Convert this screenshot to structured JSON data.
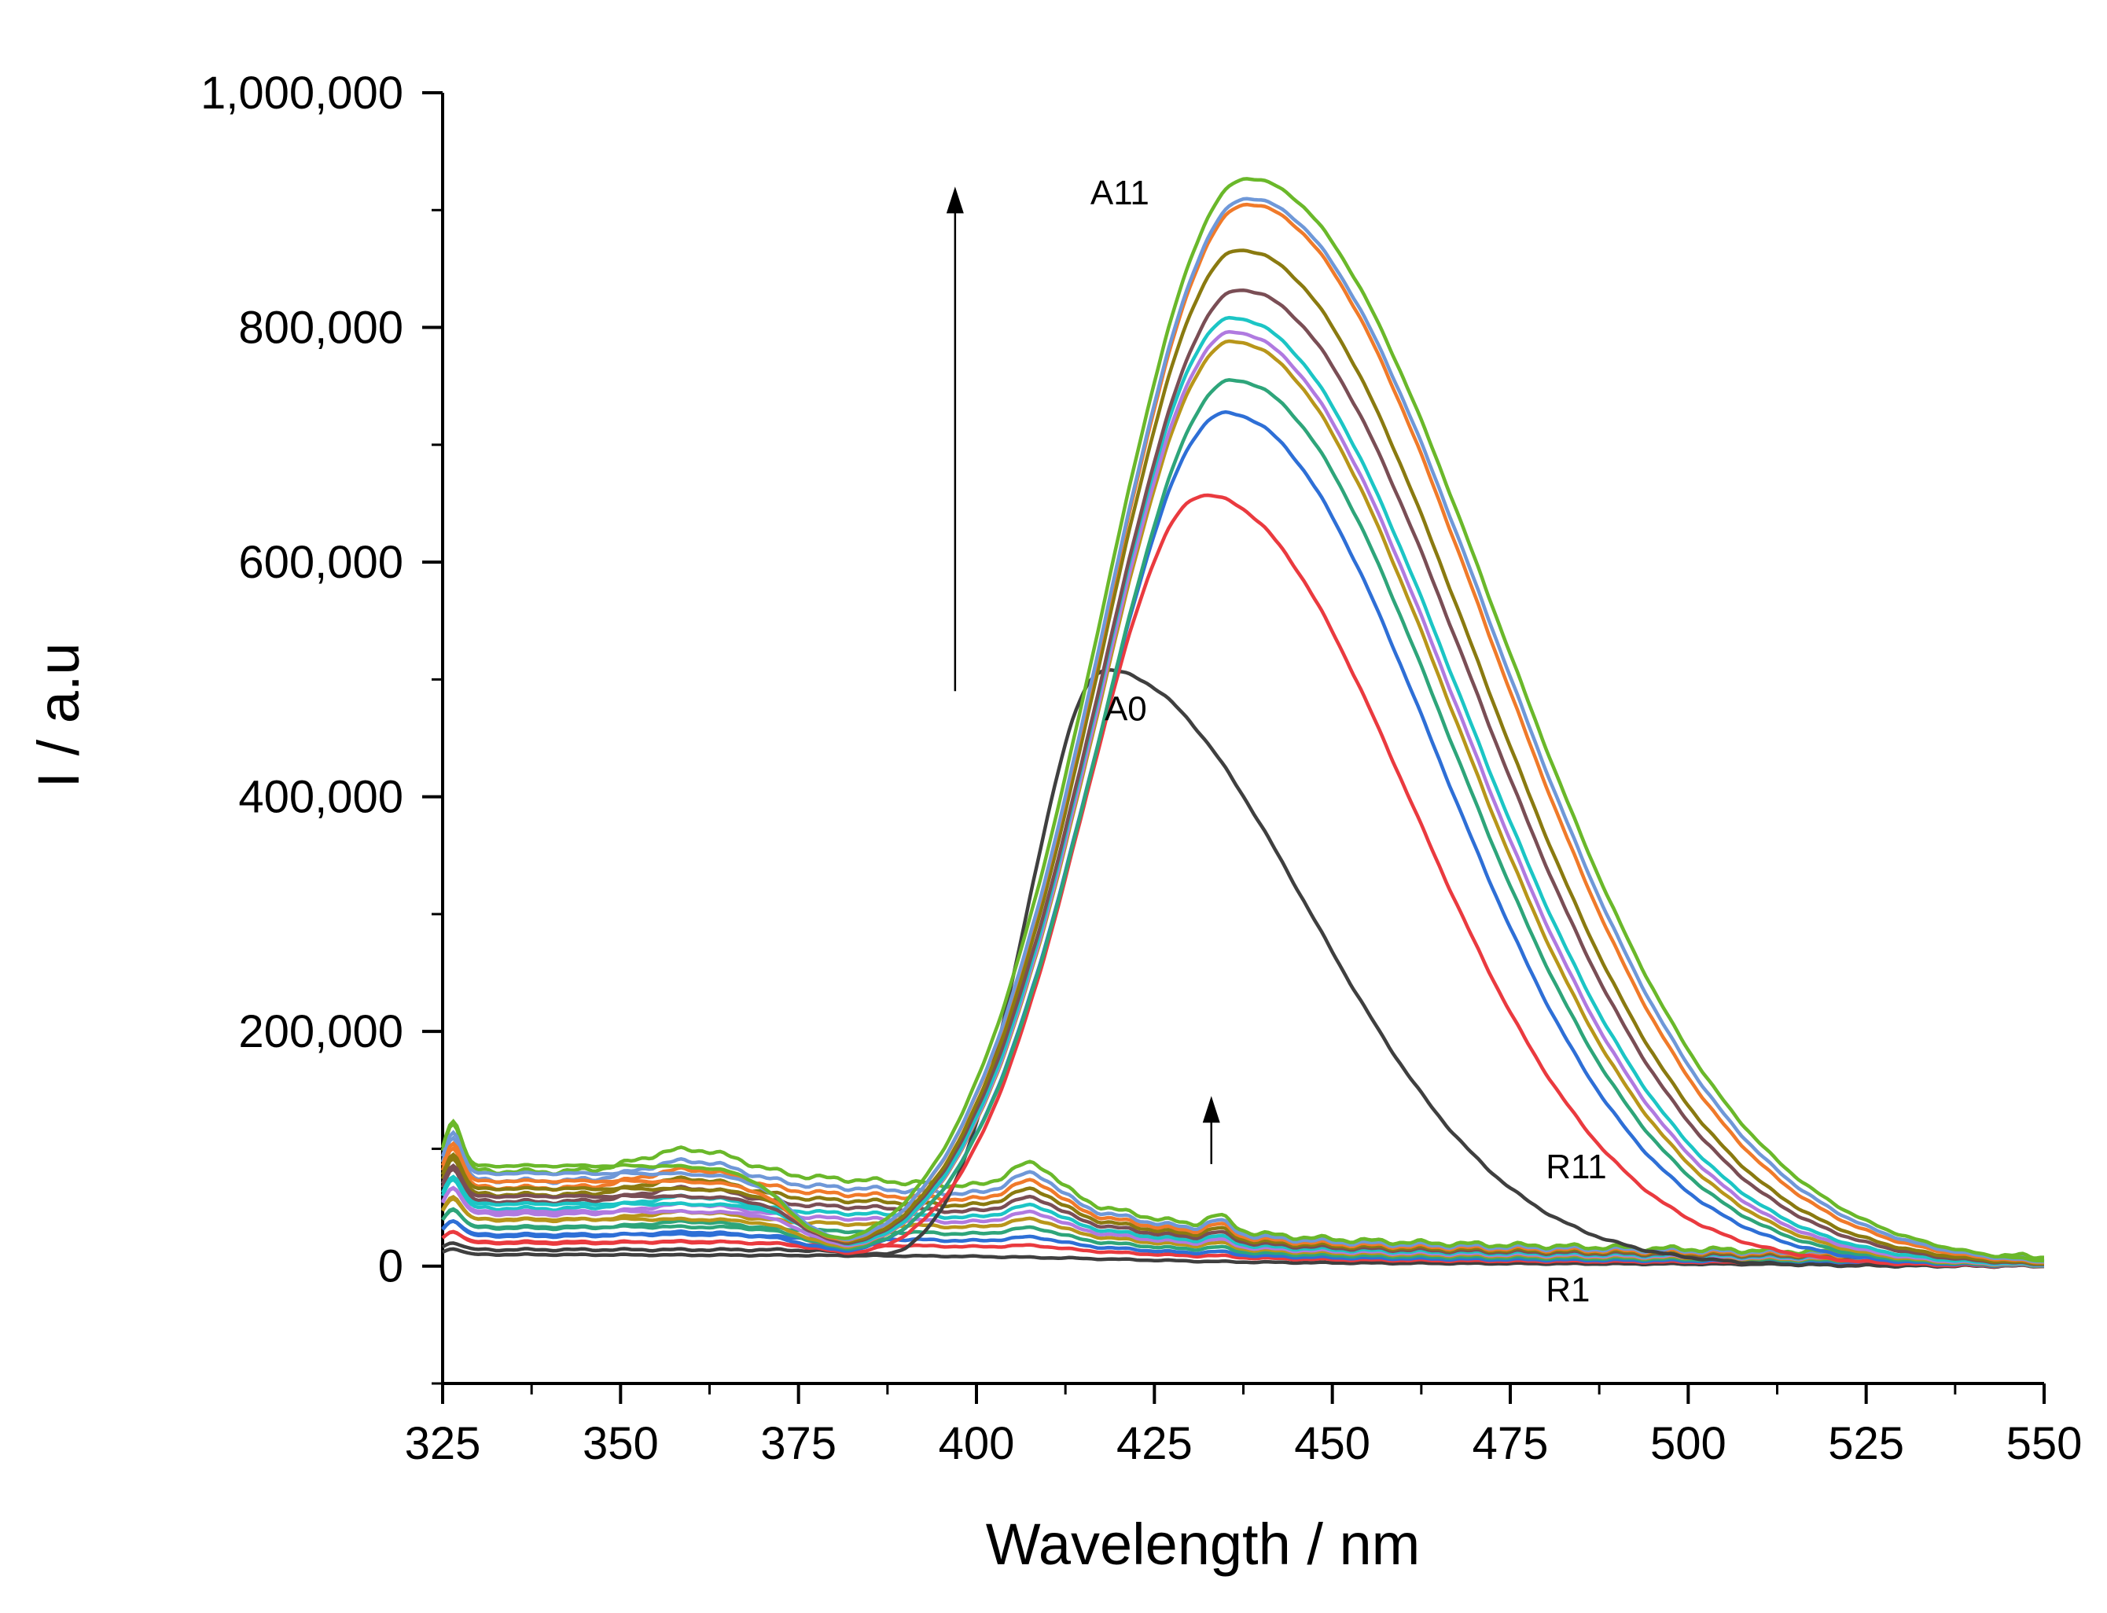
{
  "chart_data": {
    "type": "line",
    "title": "",
    "xlabel": "Wavelength / nm",
    "ylabel": "I / a.u",
    "xlim": [
      325,
      550
    ],
    "ylim": [
      -100000,
      1000000
    ],
    "x_ticks": [
      325,
      350,
      375,
      400,
      425,
      450,
      475,
      500,
      525,
      550
    ],
    "y_ticks": [
      0,
      200000,
      400000,
      600000,
      800000,
      1000000
    ],
    "x_tick_labels": [
      "325",
      "350",
      "375",
      "400",
      "425",
      "450",
      "475",
      "500",
      "525",
      "550"
    ],
    "y_tick_labels": [
      "0",
      "200,000",
      "400,000",
      "600,000",
      "800,000",
      "1,000,000"
    ],
    "grid": false,
    "legend": "none",
    "colors": {
      "black": "#3f3f3f",
      "red": "#ea3a3f",
      "blue": "#2e6fd6",
      "green": "#2ea57a",
      "olive": "#b8961a",
      "purple": "#b07ae0",
      "cyan": "#1cc5c5",
      "brown": "#7a4e55",
      "khaki": "#8a7a10",
      "orange": "#f07a2a",
      "steel": "#6f98d8",
      "lime": "#6ab82a"
    },
    "series_A": [
      {
        "color": "#3f3f3f",
        "peak_x": 418,
        "peak_y": 508000,
        "onset": 382
      },
      {
        "color": "#ea3a3f",
        "peak_x": 432,
        "peak_y": 657000,
        "onset": 376
      },
      {
        "color": "#2e6fd6",
        "peak_x": 435,
        "peak_y": 727000,
        "onset": 374
      },
      {
        "color": "#2ea57a",
        "peak_x": 436,
        "peak_y": 755000,
        "onset": 374
      },
      {
        "color": "#b8961a",
        "peak_x": 436,
        "peak_y": 788000,
        "onset": 373
      },
      {
        "color": "#b07ae0",
        "peak_x": 436,
        "peak_y": 796000,
        "onset": 373
      },
      {
        "color": "#1cc5c5",
        "peak_x": 436,
        "peak_y": 808000,
        "onset": 373
      },
      {
        "color": "#7a4e55",
        "peak_x": 437,
        "peak_y": 832000,
        "onset": 372
      },
      {
        "color": "#8a7a10",
        "peak_x": 437,
        "peak_y": 866000,
        "onset": 372
      },
      {
        "color": "#f07a2a",
        "peak_x": 438,
        "peak_y": 905000,
        "onset": 371
      },
      {
        "color": "#6f98d8",
        "peak_x": 438,
        "peak_y": 910000,
        "onset": 371
      },
      {
        "color": "#6ab82a",
        "peak_x": 438,
        "peak_y": 927000,
        "onset": 370
      }
    ],
    "series_R": [
      {
        "color": "#3f3f3f",
        "base": 10000,
        "scale": 0.0
      },
      {
        "color": "#ea3a3f",
        "base": 20000,
        "scale": 0.1
      },
      {
        "color": "#2e6fd6",
        "base": 26000,
        "scale": 0.2
      },
      {
        "color": "#2ea57a",
        "base": 33000,
        "scale": 0.3
      },
      {
        "color": "#b8961a",
        "base": 40000,
        "scale": 0.38
      },
      {
        "color": "#b07ae0",
        "base": 45000,
        "scale": 0.46
      },
      {
        "color": "#1cc5c5",
        "base": 50000,
        "scale": 0.54
      },
      {
        "color": "#7a4e55",
        "base": 56000,
        "scale": 0.62
      },
      {
        "color": "#8a7a10",
        "base": 62000,
        "scale": 0.72
      },
      {
        "color": "#f07a2a",
        "base": 68000,
        "scale": 0.82
      },
      {
        "color": "#6f98d8",
        "base": 74000,
        "scale": 0.9
      },
      {
        "color": "#6ab82a",
        "base": 82000,
        "scale": 1.0
      }
    ],
    "annotations": [
      {
        "text": "A11",
        "x": 416,
        "y": 905000
      },
      {
        "text": "A0",
        "x": 418,
        "y": 465000
      },
      {
        "text": "R11",
        "x": 480,
        "y": 75000
      },
      {
        "text": "R1",
        "x": 480,
        "y": -30000
      }
    ],
    "arrows": [
      {
        "x": 397,
        "y_from": 490000,
        "y_to": 920000
      },
      {
        "x": 433,
        "y_from": 87000,
        "y_to": 145000
      }
    ]
  }
}
